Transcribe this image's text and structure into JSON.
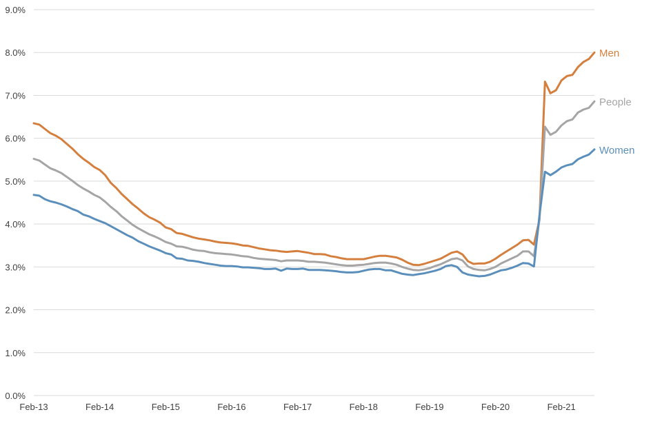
{
  "chart_data": {
    "type": "line",
    "title": "",
    "xlabel": "",
    "ylabel": "",
    "ylim": [
      0,
      9
    ],
    "yticks": [
      "0.0%",
      "1.0%",
      "2.0%",
      "3.0%",
      "4.0%",
      "5.0%",
      "6.0%",
      "7.0%",
      "8.0%",
      "9.0%"
    ],
    "xtick_labels": [
      "Feb-13",
      "Feb-14",
      "Feb-15",
      "Feb-16",
      "Feb-17",
      "Feb-18",
      "Feb-19",
      "Feb-20",
      "Feb-21"
    ],
    "x_start": "2013-02",
    "x_end": "2021-02",
    "grid": true,
    "legend": "inline-right",
    "series": [
      {
        "name": "Men",
        "color": "#d47f3e",
        "values": [
          [
            0,
            6.35
          ],
          [
            1,
            6.32
          ],
          [
            2,
            6.22
          ],
          [
            3,
            6.12
          ],
          [
            4,
            6.06
          ],
          [
            5,
            5.98
          ],
          [
            6,
            5.87
          ],
          [
            7,
            5.76
          ],
          [
            8,
            5.63
          ],
          [
            9,
            5.52
          ],
          [
            10,
            5.43
          ],
          [
            11,
            5.33
          ],
          [
            12,
            5.26
          ],
          [
            13,
            5.14
          ],
          [
            14,
            4.96
          ],
          [
            15,
            4.84
          ],
          [
            16,
            4.7
          ],
          [
            17,
            4.58
          ],
          [
            18,
            4.46
          ],
          [
            19,
            4.36
          ],
          [
            20,
            4.25
          ],
          [
            21,
            4.16
          ],
          [
            22,
            4.1
          ],
          [
            23,
            4.03
          ],
          [
            24,
            3.92
          ],
          [
            25,
            3.88
          ],
          [
            26,
            3.79
          ],
          [
            27,
            3.77
          ],
          [
            28,
            3.73
          ],
          [
            29,
            3.69
          ],
          [
            30,
            3.66
          ],
          [
            31,
            3.64
          ],
          [
            32,
            3.62
          ],
          [
            33,
            3.59
          ],
          [
            34,
            3.57
          ],
          [
            35,
            3.56
          ],
          [
            36,
            3.55
          ],
          [
            37,
            3.53
          ],
          [
            38,
            3.5
          ],
          [
            39,
            3.49
          ],
          [
            40,
            3.46
          ],
          [
            41,
            3.43
          ],
          [
            42,
            3.41
          ],
          [
            43,
            3.39
          ],
          [
            44,
            3.38
          ],
          [
            45,
            3.36
          ],
          [
            46,
            3.35
          ],
          [
            47,
            3.36
          ],
          [
            48,
            3.37
          ],
          [
            49,
            3.35
          ],
          [
            50,
            3.33
          ],
          [
            51,
            3.3
          ],
          [
            52,
            3.3
          ],
          [
            53,
            3.29
          ],
          [
            54,
            3.25
          ],
          [
            55,
            3.23
          ],
          [
            56,
            3.2
          ],
          [
            57,
            3.18
          ],
          [
            58,
            3.18
          ],
          [
            59,
            3.18
          ],
          [
            60,
            3.18
          ],
          [
            61,
            3.21
          ],
          [
            62,
            3.24
          ],
          [
            63,
            3.26
          ],
          [
            64,
            3.26
          ],
          [
            65,
            3.24
          ],
          [
            66,
            3.22
          ],
          [
            67,
            3.17
          ],
          [
            68,
            3.1
          ],
          [
            69,
            3.05
          ],
          [
            70,
            3.04
          ],
          [
            71,
            3.07
          ],
          [
            72,
            3.11
          ],
          [
            73,
            3.15
          ],
          [
            74,
            3.19
          ],
          [
            75,
            3.26
          ],
          [
            76,
            3.33
          ],
          [
            77,
            3.36
          ],
          [
            78,
            3.29
          ],
          [
            79,
            3.13
          ],
          [
            80,
            3.07
          ],
          [
            81,
            3.08
          ],
          [
            82,
            3.08
          ],
          [
            83,
            3.12
          ],
          [
            84,
            3.19
          ],
          [
            85,
            3.28
          ],
          [
            86,
            3.36
          ],
          [
            87,
            3.44
          ],
          [
            88,
            3.52
          ],
          [
            89,
            3.62
          ],
          [
            90,
            3.63
          ],
          [
            91,
            3.52
          ],
          [
            92,
            4.1
          ],
          [
            93,
            7.32
          ],
          [
            94,
            7.05
          ],
          [
            95,
            7.12
          ],
          [
            96,
            7.35
          ],
          [
            97,
            7.45
          ],
          [
            98,
            7.48
          ],
          [
            99,
            7.66
          ],
          [
            100,
            7.78
          ],
          [
            101,
            7.85
          ],
          [
            102,
            8.0
          ]
        ]
      },
      {
        "name": "People",
        "color": "#a5a5a5",
        "values": [
          [
            0,
            5.52
          ],
          [
            1,
            5.48
          ],
          [
            2,
            5.39
          ],
          [
            3,
            5.3
          ],
          [
            4,
            5.25
          ],
          [
            5,
            5.19
          ],
          [
            6,
            5.1
          ],
          [
            7,
            5.01
          ],
          [
            8,
            4.91
          ],
          [
            9,
            4.83
          ],
          [
            10,
            4.76
          ],
          [
            11,
            4.68
          ],
          [
            12,
            4.62
          ],
          [
            13,
            4.52
          ],
          [
            14,
            4.4
          ],
          [
            15,
            4.3
          ],
          [
            16,
            4.18
          ],
          [
            17,
            4.08
          ],
          [
            18,
            3.98
          ],
          [
            19,
            3.9
          ],
          [
            20,
            3.83
          ],
          [
            21,
            3.76
          ],
          [
            22,
            3.71
          ],
          [
            23,
            3.65
          ],
          [
            24,
            3.58
          ],
          [
            25,
            3.54
          ],
          [
            26,
            3.48
          ],
          [
            27,
            3.47
          ],
          [
            28,
            3.44
          ],
          [
            29,
            3.4
          ],
          [
            30,
            3.38
          ],
          [
            31,
            3.37
          ],
          [
            32,
            3.34
          ],
          [
            33,
            3.32
          ],
          [
            34,
            3.31
          ],
          [
            35,
            3.3
          ],
          [
            36,
            3.29
          ],
          [
            37,
            3.27
          ],
          [
            38,
            3.25
          ],
          [
            39,
            3.24
          ],
          [
            40,
            3.21
          ],
          [
            41,
            3.19
          ],
          [
            42,
            3.18
          ],
          [
            43,
            3.17
          ],
          [
            44,
            3.16
          ],
          [
            45,
            3.13
          ],
          [
            46,
            3.15
          ],
          [
            47,
            3.15
          ],
          [
            48,
            3.15
          ],
          [
            49,
            3.14
          ],
          [
            50,
            3.12
          ],
          [
            51,
            3.12
          ],
          [
            52,
            3.11
          ],
          [
            53,
            3.1
          ],
          [
            54,
            3.08
          ],
          [
            55,
            3.06
          ],
          [
            56,
            3.04
          ],
          [
            57,
            3.03
          ],
          [
            58,
            3.03
          ],
          [
            59,
            3.04
          ],
          [
            60,
            3.05
          ],
          [
            61,
            3.07
          ],
          [
            62,
            3.09
          ],
          [
            63,
            3.1
          ],
          [
            64,
            3.1
          ],
          [
            65,
            3.08
          ],
          [
            66,
            3.05
          ],
          [
            67,
            3.0
          ],
          [
            68,
            2.96
          ],
          [
            69,
            2.93
          ],
          [
            70,
            2.92
          ],
          [
            71,
            2.94
          ],
          [
            72,
            2.97
          ],
          [
            73,
            3.02
          ],
          [
            74,
            3.06
          ],
          [
            75,
            3.12
          ],
          [
            76,
            3.18
          ],
          [
            77,
            3.2
          ],
          [
            78,
            3.15
          ],
          [
            79,
            3.01
          ],
          [
            80,
            2.95
          ],
          [
            81,
            2.93
          ],
          [
            82,
            2.92
          ],
          [
            83,
            2.95
          ],
          [
            84,
            3.0
          ],
          [
            85,
            3.08
          ],
          [
            86,
            3.14
          ],
          [
            87,
            3.2
          ],
          [
            88,
            3.26
          ],
          [
            89,
            3.36
          ],
          [
            90,
            3.36
          ],
          [
            91,
            3.25
          ],
          [
            92,
            4.1
          ],
          [
            93,
            6.27
          ],
          [
            94,
            6.08
          ],
          [
            95,
            6.15
          ],
          [
            96,
            6.3
          ],
          [
            97,
            6.4
          ],
          [
            98,
            6.44
          ],
          [
            99,
            6.6
          ],
          [
            100,
            6.67
          ],
          [
            101,
            6.71
          ],
          [
            102,
            6.86
          ]
        ]
      },
      {
        "name": "Women",
        "color": "#5b8fbb",
        "values": [
          [
            0,
            4.68
          ],
          [
            1,
            4.66
          ],
          [
            2,
            4.58
          ],
          [
            3,
            4.53
          ],
          [
            4,
            4.5
          ],
          [
            5,
            4.46
          ],
          [
            6,
            4.41
          ],
          [
            7,
            4.35
          ],
          [
            8,
            4.3
          ],
          [
            9,
            4.22
          ],
          [
            10,
            4.18
          ],
          [
            11,
            4.12
          ],
          [
            12,
            4.07
          ],
          [
            13,
            4.02
          ],
          [
            14,
            3.95
          ],
          [
            15,
            3.88
          ],
          [
            16,
            3.81
          ],
          [
            17,
            3.74
          ],
          [
            18,
            3.68
          ],
          [
            19,
            3.6
          ],
          [
            20,
            3.54
          ],
          [
            21,
            3.48
          ],
          [
            22,
            3.43
          ],
          [
            23,
            3.38
          ],
          [
            24,
            3.32
          ],
          [
            25,
            3.29
          ],
          [
            26,
            3.2
          ],
          [
            27,
            3.19
          ],
          [
            28,
            3.15
          ],
          [
            29,
            3.14
          ],
          [
            30,
            3.12
          ],
          [
            31,
            3.09
          ],
          [
            32,
            3.07
          ],
          [
            33,
            3.05
          ],
          [
            34,
            3.03
          ],
          [
            35,
            3.02
          ],
          [
            36,
            3.02
          ],
          [
            37,
            3.01
          ],
          [
            38,
            2.99
          ],
          [
            39,
            2.99
          ],
          [
            40,
            2.98
          ],
          [
            41,
            2.97
          ],
          [
            42,
            2.95
          ],
          [
            43,
            2.95
          ],
          [
            44,
            2.96
          ],
          [
            45,
            2.91
          ],
          [
            46,
            2.96
          ],
          [
            47,
            2.95
          ],
          [
            48,
            2.95
          ],
          [
            49,
            2.96
          ],
          [
            50,
            2.93
          ],
          [
            51,
            2.93
          ],
          [
            52,
            2.93
          ],
          [
            53,
            2.92
          ],
          [
            54,
            2.91
          ],
          [
            55,
            2.9
          ],
          [
            56,
            2.88
          ],
          [
            57,
            2.87
          ],
          [
            58,
            2.87
          ],
          [
            59,
            2.88
          ],
          [
            60,
            2.91
          ],
          [
            61,
            2.94
          ],
          [
            62,
            2.95
          ],
          [
            63,
            2.95
          ],
          [
            64,
            2.92
          ],
          [
            65,
            2.92
          ],
          [
            66,
            2.88
          ],
          [
            67,
            2.84
          ],
          [
            68,
            2.82
          ],
          [
            69,
            2.81
          ],
          [
            70,
            2.83
          ],
          [
            71,
            2.85
          ],
          [
            72,
            2.88
          ],
          [
            73,
            2.91
          ],
          [
            74,
            2.95
          ],
          [
            75,
            3.02
          ],
          [
            76,
            3.04
          ],
          [
            77,
            3.0
          ],
          [
            78,
            2.87
          ],
          [
            79,
            2.82
          ],
          [
            80,
            2.8
          ],
          [
            81,
            2.78
          ],
          [
            82,
            2.79
          ],
          [
            83,
            2.82
          ],
          [
            84,
            2.87
          ],
          [
            85,
            2.92
          ],
          [
            86,
            2.94
          ],
          [
            87,
            2.98
          ],
          [
            88,
            3.03
          ],
          [
            89,
            3.09
          ],
          [
            90,
            3.08
          ],
          [
            91,
            3.01
          ],
          [
            92,
            4.2
          ],
          [
            93,
            5.22
          ],
          [
            94,
            5.14
          ],
          [
            95,
            5.22
          ],
          [
            96,
            5.32
          ],
          [
            97,
            5.37
          ],
          [
            98,
            5.4
          ],
          [
            99,
            5.51
          ],
          [
            100,
            5.57
          ],
          [
            101,
            5.62
          ],
          [
            102,
            5.74
          ]
        ]
      }
    ]
  }
}
